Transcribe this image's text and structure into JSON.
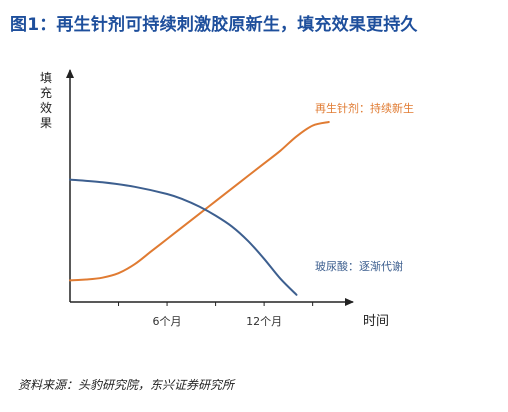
{
  "figure": {
    "title": "图1：再生针剂可持续刺激胶原新生，填充效果更持久",
    "source": "资料来源：头豹研究院，东兴证券研究所"
  },
  "colors": {
    "title": "#1e4f9c",
    "axis": "#222222",
    "series_regeneration": "#e07b32",
    "series_hyaluronic": "#3d5f8f",
    "label_text": "#e07b32",
    "label_text_blue": "#3d5f8f"
  },
  "chart_data": {
    "type": "line",
    "title": "",
    "ylabel": "填充效果",
    "xlabel": "时间",
    "x_tick_labels": [
      {
        "x": 6,
        "label": "6个月"
      },
      {
        "x": 12,
        "label": "12个月"
      }
    ],
    "x_minor_ticks": [
      3,
      6,
      9,
      12,
      15
    ],
    "xlim": [
      0,
      17
    ],
    "ylim": [
      0,
      100
    ],
    "grid": false,
    "legend": "inline labels at line ends",
    "series": [
      {
        "name": "再生针剂：持续新生",
        "x": [
          0,
          1,
          2,
          3,
          4,
          5,
          6,
          7,
          8,
          9,
          10,
          11,
          12,
          13,
          14,
          15,
          16
        ],
        "values": [
          12,
          12.5,
          13.5,
          16,
          21,
          28,
          35,
          42,
          49,
          56,
          63,
          70,
          77,
          84,
          92,
          98,
          100
        ]
      },
      {
        "name": "玻尿酸：逐渐代谢",
        "x": [
          0,
          2,
          4,
          6,
          7,
          8,
          9,
          10,
          11,
          12,
          13,
          14
        ],
        "values": [
          68,
          66.5,
          64,
          60,
          57,
          53,
          48,
          42,
          34,
          24,
          13,
          4
        ]
      }
    ]
  }
}
